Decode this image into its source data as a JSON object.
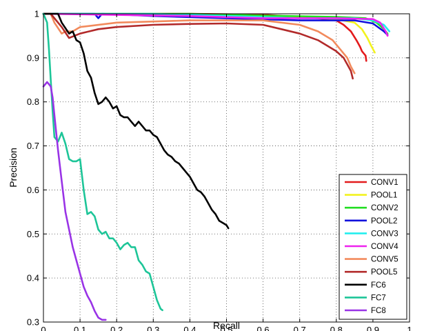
{
  "chart_data": {
    "type": "line",
    "xlabel": "Recall",
    "ylabel": "Precision",
    "xlim": [
      0,
      1
    ],
    "ylim": [
      0.3,
      1
    ],
    "x_ticks": [
      0,
      0.1,
      0.2,
      0.3,
      0.4,
      0.5,
      0.6,
      0.7,
      0.8,
      0.9,
      1
    ],
    "y_ticks": [
      0.3,
      0.4,
      0.5,
      0.6,
      0.7,
      0.8,
      0.9,
      1
    ],
    "x_tick_labels": [
      "0",
      "0.1",
      "0.2",
      "0.3",
      "0.4",
      "0.5",
      "0.6",
      "0.7",
      "0.8",
      "0.9",
      "1"
    ],
    "y_tick_labels": [
      "0.3",
      "0.4",
      "0.5",
      "0.6",
      "0.7",
      "0.8",
      "0.9",
      "1"
    ],
    "grid": true,
    "legend_position": "bottom-right",
    "series": [
      {
        "name": "CONV1",
        "color": "#e31a1c",
        "points": [
          [
            0,
            1
          ],
          [
            0.2,
            1
          ],
          [
            0.4,
            1
          ],
          [
            0.6,
            0.998
          ],
          [
            0.7,
            0.992
          ],
          [
            0.75,
            0.99
          ],
          [
            0.8,
            0.985
          ],
          [
            0.82,
            0.975
          ],
          [
            0.84,
            0.96
          ],
          [
            0.855,
            0.94
          ],
          [
            0.865,
            0.925
          ],
          [
            0.87,
            0.915
          ],
          [
            0.88,
            0.905
          ],
          [
            0.882,
            0.893
          ]
        ]
      },
      {
        "name": "POOL1",
        "color": "#f2f21e",
        "points": [
          [
            0,
            1
          ],
          [
            0.3,
            1
          ],
          [
            0.5,
            0.998
          ],
          [
            0.7,
            0.993
          ],
          [
            0.8,
            0.988
          ],
          [
            0.85,
            0.98
          ],
          [
            0.87,
            0.965
          ],
          [
            0.885,
            0.945
          ],
          [
            0.895,
            0.928
          ],
          [
            0.905,
            0.912
          ]
        ]
      },
      {
        "name": "CONV2",
        "color": "#22dd22",
        "points": [
          [
            0,
            1
          ],
          [
            0.4,
            1
          ],
          [
            0.6,
            0.996
          ],
          [
            0.8,
            0.993
          ],
          [
            0.88,
            0.99
          ],
          [
            0.91,
            0.98
          ],
          [
            0.93,
            0.965
          ],
          [
            0.94,
            0.955
          ]
        ]
      },
      {
        "name": "POOL2",
        "color": "#1010dd",
        "points": [
          [
            0,
            1
          ],
          [
            0.14,
            1
          ],
          [
            0.15,
            0.99
          ],
          [
            0.16,
            1
          ],
          [
            0.3,
            0.995
          ],
          [
            0.5,
            0.99
          ],
          [
            0.7,
            0.985
          ],
          [
            0.85,
            0.985
          ],
          [
            0.9,
            0.978
          ],
          [
            0.93,
            0.96
          ],
          [
            0.94,
            0.952
          ]
        ]
      },
      {
        "name": "CONV3",
        "color": "#22eeee",
        "points": [
          [
            0,
            1
          ],
          [
            0.3,
            1
          ],
          [
            0.5,
            0.995
          ],
          [
            0.7,
            0.99
          ],
          [
            0.85,
            0.99
          ],
          [
            0.9,
            0.985
          ],
          [
            0.93,
            0.975
          ],
          [
            0.945,
            0.96
          ]
        ]
      },
      {
        "name": "CONV4",
        "color": "#ee22ee",
        "points": [
          [
            0,
            1
          ],
          [
            0.4,
            0.995
          ],
          [
            0.6,
            0.99
          ],
          [
            0.8,
            0.99
          ],
          [
            0.9,
            0.988
          ],
          [
            0.92,
            0.98
          ],
          [
            0.935,
            0.96
          ],
          [
            0.94,
            0.95
          ]
        ]
      },
      {
        "name": "CONV5",
        "color": "#f28a5c",
        "points": [
          [
            0,
            1
          ],
          [
            0.02,
            1
          ],
          [
            0.03,
            0.98
          ],
          [
            0.05,
            0.955
          ],
          [
            0.06,
            0.96
          ],
          [
            0.08,
            0.96
          ],
          [
            0.1,
            0.97
          ],
          [
            0.2,
            0.98
          ],
          [
            0.4,
            0.985
          ],
          [
            0.6,
            0.985
          ],
          [
            0.7,
            0.975
          ],
          [
            0.75,
            0.96
          ],
          [
            0.79,
            0.94
          ],
          [
            0.81,
            0.92
          ],
          [
            0.83,
            0.9
          ],
          [
            0.84,
            0.88
          ],
          [
            0.85,
            0.865
          ]
        ]
      },
      {
        "name": "POOL5",
        "color": "#b22a2a",
        "points": [
          [
            0,
            1
          ],
          [
            0.02,
            1
          ],
          [
            0.05,
            0.97
          ],
          [
            0.07,
            0.945
          ],
          [
            0.1,
            0.955
          ],
          [
            0.15,
            0.965
          ],
          [
            0.2,
            0.97
          ],
          [
            0.3,
            0.975
          ],
          [
            0.4,
            0.977
          ],
          [
            0.5,
            0.978
          ],
          [
            0.6,
            0.975
          ],
          [
            0.65,
            0.965
          ],
          [
            0.7,
            0.955
          ],
          [
            0.75,
            0.94
          ],
          [
            0.8,
            0.915
          ],
          [
            0.82,
            0.9
          ],
          [
            0.83,
            0.885
          ],
          [
            0.84,
            0.87
          ],
          [
            0.845,
            0.853
          ]
        ]
      },
      {
        "name": "FC6",
        "color": "#000000",
        "points": [
          [
            0,
            1
          ],
          [
            0.04,
            1
          ],
          [
            0.05,
            0.98
          ],
          [
            0.07,
            0.955
          ],
          [
            0.08,
            0.96
          ],
          [
            0.09,
            0.94
          ],
          [
            0.1,
            0.935
          ],
          [
            0.11,
            0.91
          ],
          [
            0.12,
            0.87
          ],
          [
            0.13,
            0.855
          ],
          [
            0.14,
            0.82
          ],
          [
            0.15,
            0.795
          ],
          [
            0.16,
            0.8
          ],
          [
            0.17,
            0.81
          ],
          [
            0.18,
            0.8
          ],
          [
            0.19,
            0.785
          ],
          [
            0.2,
            0.79
          ],
          [
            0.21,
            0.77
          ],
          [
            0.22,
            0.765
          ],
          [
            0.23,
            0.765
          ],
          [
            0.24,
            0.755
          ],
          [
            0.25,
            0.745
          ],
          [
            0.26,
            0.755
          ],
          [
            0.27,
            0.745
          ],
          [
            0.28,
            0.735
          ],
          [
            0.29,
            0.735
          ],
          [
            0.3,
            0.725
          ],
          [
            0.31,
            0.72
          ],
          [
            0.32,
            0.705
          ],
          [
            0.33,
            0.69
          ],
          [
            0.34,
            0.68
          ],
          [
            0.35,
            0.675
          ],
          [
            0.36,
            0.665
          ],
          [
            0.37,
            0.66
          ],
          [
            0.38,
            0.65
          ],
          [
            0.39,
            0.64
          ],
          [
            0.4,
            0.63
          ],
          [
            0.41,
            0.615
          ],
          [
            0.42,
            0.6
          ],
          [
            0.43,
            0.595
          ],
          [
            0.44,
            0.585
          ],
          [
            0.45,
            0.57
          ],
          [
            0.46,
            0.555
          ],
          [
            0.47,
            0.545
          ],
          [
            0.48,
            0.53
          ],
          [
            0.49,
            0.525
          ],
          [
            0.5,
            0.52
          ],
          [
            0.505,
            0.513
          ]
        ]
      },
      {
        "name": "FC7",
        "color": "#1dc598",
        "points": [
          [
            0,
            1
          ],
          [
            0.01,
            0.98
          ],
          [
            0.015,
            0.92
          ],
          [
            0.02,
            0.85
          ],
          [
            0.025,
            0.78
          ],
          [
            0.03,
            0.72
          ],
          [
            0.04,
            0.71
          ],
          [
            0.05,
            0.73
          ],
          [
            0.06,
            0.705
          ],
          [
            0.07,
            0.67
          ],
          [
            0.08,
            0.665
          ],
          [
            0.09,
            0.665
          ],
          [
            0.1,
            0.67
          ],
          [
            0.11,
            0.6
          ],
          [
            0.12,
            0.545
          ],
          [
            0.13,
            0.55
          ],
          [
            0.14,
            0.54
          ],
          [
            0.15,
            0.51
          ],
          [
            0.16,
            0.5
          ],
          [
            0.17,
            0.505
          ],
          [
            0.18,
            0.49
          ],
          [
            0.19,
            0.49
          ],
          [
            0.2,
            0.48
          ],
          [
            0.21,
            0.465
          ],
          [
            0.22,
            0.475
          ],
          [
            0.23,
            0.48
          ],
          [
            0.24,
            0.47
          ],
          [
            0.25,
            0.47
          ],
          [
            0.26,
            0.44
          ],
          [
            0.27,
            0.43
          ],
          [
            0.28,
            0.415
          ],
          [
            0.29,
            0.41
          ],
          [
            0.3,
            0.38
          ],
          [
            0.31,
            0.35
          ],
          [
            0.32,
            0.33
          ],
          [
            0.325,
            0.327
          ]
        ]
      },
      {
        "name": "FC8",
        "color": "#9933e6",
        "points": [
          [
            0,
            0.835
          ],
          [
            0.005,
            0.84
          ],
          [
            0.01,
            0.845
          ],
          [
            0.015,
            0.84
          ],
          [
            0.02,
            0.835
          ],
          [
            0.025,
            0.81
          ],
          [
            0.03,
            0.77
          ],
          [
            0.04,
            0.69
          ],
          [
            0.05,
            0.62
          ],
          [
            0.06,
            0.55
          ],
          [
            0.07,
            0.51
          ],
          [
            0.08,
            0.47
          ],
          [
            0.09,
            0.44
          ],
          [
            0.1,
            0.41
          ],
          [
            0.11,
            0.38
          ],
          [
            0.12,
            0.36
          ],
          [
            0.13,
            0.345
          ],
          [
            0.14,
            0.325
          ],
          [
            0.15,
            0.31
          ],
          [
            0.16,
            0.305
          ],
          [
            0.17,
            0.305
          ]
        ]
      }
    ]
  }
}
